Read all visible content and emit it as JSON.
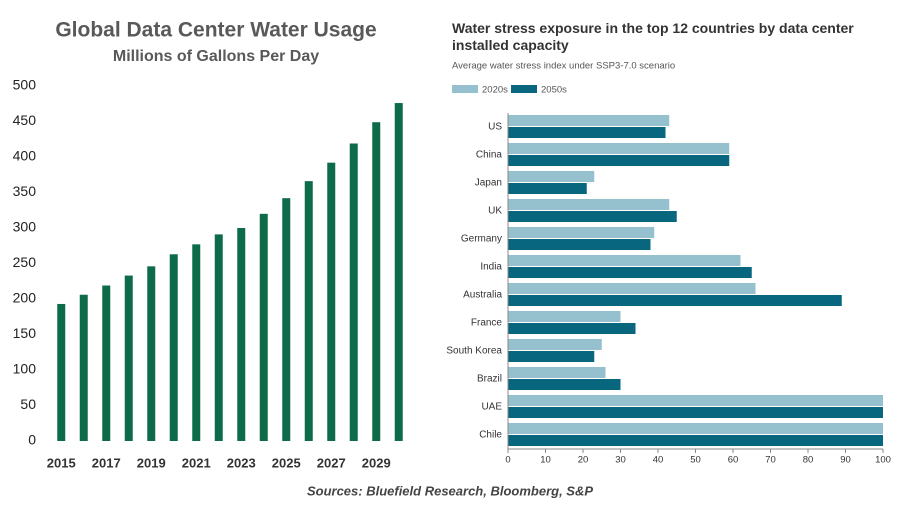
{
  "chart_data": [
    {
      "type": "bar",
      "title": "Global Data Center Water Usage",
      "subtitle": "Millions of Gallons Per Day",
      "categories": [
        "2015",
        null,
        "2017",
        null,
        "2019",
        null,
        "2021",
        null,
        "2023",
        null,
        "2025",
        null,
        "2027",
        null,
        "2029",
        null
      ],
      "values": [
        193,
        206,
        219,
        233,
        246,
        263,
        277,
        291,
        300,
        320,
        342,
        366,
        392,
        419,
        449,
        476
      ],
      "color": "#0e6b4a",
      "ylim": [
        0,
        500
      ],
      "yticks": [
        0,
        50,
        100,
        150,
        200,
        250,
        300,
        350,
        400,
        450,
        500
      ]
    },
    {
      "type": "barh",
      "title": "Water stress exposure in the top 12 countries by data center installed capacity",
      "subtitle": "Average water stress index under SSP3-7.0 scenario",
      "categories": [
        "US",
        "China",
        "Japan",
        "UK",
        "Germany",
        "India",
        "Australia",
        "France",
        "South Korea",
        "Brazil",
        "UAE",
        "Chile"
      ],
      "series": [
        {
          "name": "2020s",
          "color": "#94c1cd",
          "values": [
            43,
            59,
            23,
            43,
            39,
            62,
            66,
            30,
            25,
            26,
            100,
            100
          ]
        },
        {
          "name": "2050s",
          "color": "#08677f",
          "values": [
            42,
            59,
            21,
            45,
            38,
            65,
            89,
            34,
            23,
            30,
            100,
            100
          ]
        }
      ],
      "xlim": [
        0,
        100
      ],
      "xticks": [
        0,
        10,
        20,
        30,
        40,
        50,
        60,
        70,
        80,
        90,
        100
      ]
    }
  ],
  "source": "Sources: Bluefield Research, Bloomberg, S&P"
}
